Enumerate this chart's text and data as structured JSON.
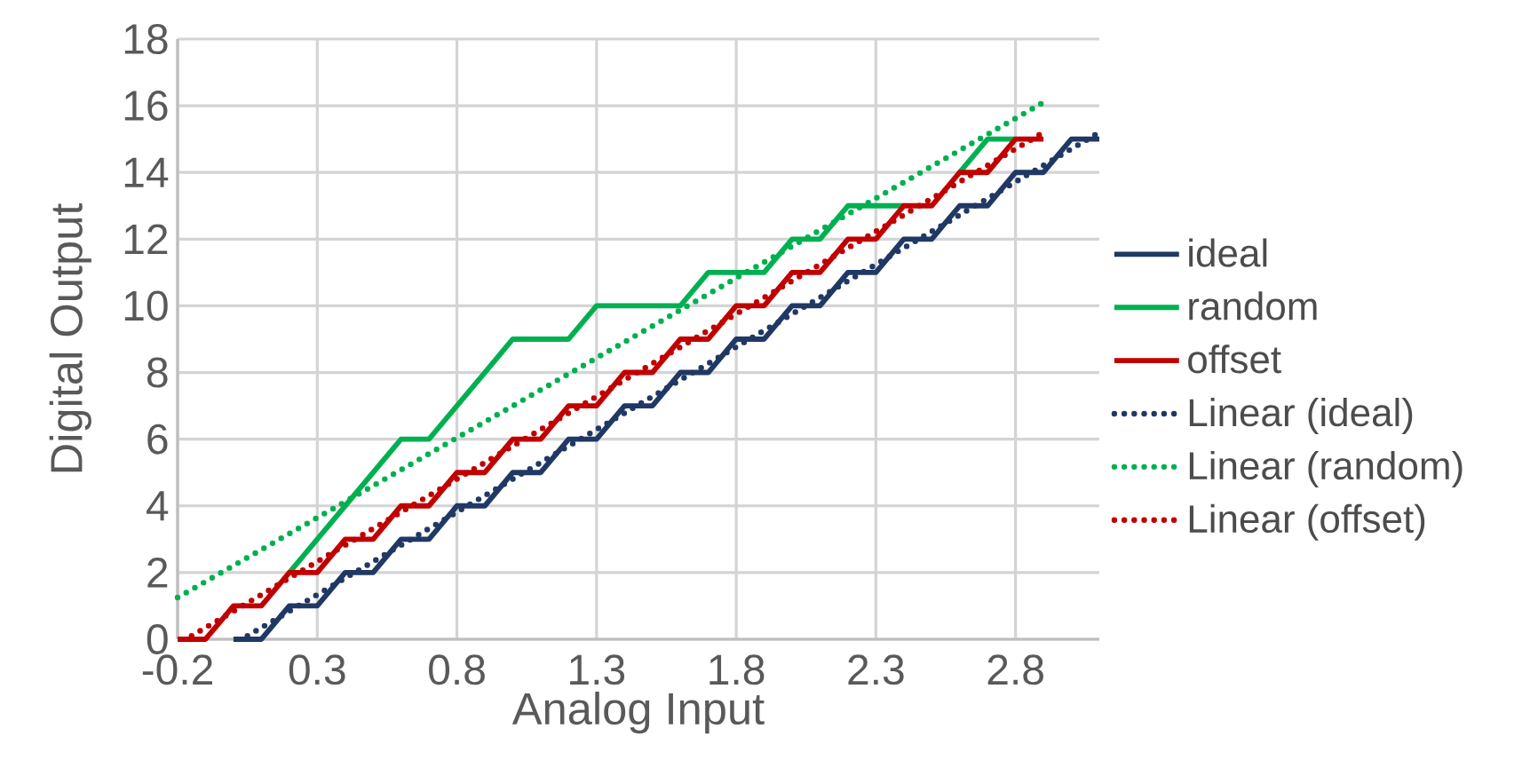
{
  "chart_data": {
    "type": "line",
    "xlabel": "Analog Input",
    "ylabel": "Digital Output",
    "xlim": [
      -0.2,
      3.1
    ],
    "ylim": [
      0,
      18
    ],
    "xticks": [
      -0.2,
      0.3,
      0.8,
      1.3,
      1.8,
      2.3,
      2.8
    ],
    "yticks": [
      0,
      2,
      4,
      6,
      8,
      10,
      12,
      14,
      16,
      18
    ],
    "grid": true,
    "legend": "right",
    "series": [
      {
        "name": "ideal",
        "color": "#203864",
        "line_style": "solid",
        "x": [
          0,
          0.1,
          0.2,
          0.3,
          0.4,
          0.5,
          0.6,
          0.7,
          0.8,
          0.9,
          1.0,
          1.1,
          1.2,
          1.3,
          1.4,
          1.5,
          1.6,
          1.7,
          1.8,
          1.9,
          2.0,
          2.1,
          2.2,
          2.3,
          2.4,
          2.5,
          2.6,
          2.7,
          2.8,
          2.9,
          3.0,
          3.1
        ],
        "values": [
          0,
          0,
          1,
          1,
          2,
          2,
          3,
          3,
          4,
          4,
          5,
          5,
          6,
          6,
          7,
          7,
          8,
          8,
          9,
          9,
          10,
          10,
          11,
          11,
          12,
          12,
          13,
          13,
          14,
          14,
          15,
          15
        ]
      },
      {
        "name": "random",
        "color": "#00b050",
        "line_style": "solid",
        "x": [
          0.2,
          0.3,
          0.4,
          0.5,
          0.6,
          0.7,
          0.8,
          0.9,
          1.0,
          1.1,
          1.2,
          1.3,
          1.4,
          1.5,
          1.6,
          1.7,
          1.8,
          1.9,
          2.0,
          2.1,
          2.2,
          2.3,
          2.4,
          2.5,
          2.6,
          2.7,
          2.8
        ],
        "values": [
          2,
          3,
          4,
          5,
          6,
          6,
          7,
          8,
          9,
          9,
          9,
          10,
          10,
          10,
          10,
          11,
          11,
          11,
          12,
          12,
          13,
          13,
          13,
          null,
          14,
          15,
          15
        ]
      },
      {
        "name": "offset",
        "color": "#c00000",
        "line_style": "solid",
        "x": [
          -0.2,
          -0.1,
          0,
          0.1,
          0.2,
          0.3,
          0.4,
          0.5,
          0.6,
          0.7,
          0.8,
          0.9,
          1.0,
          1.1,
          1.2,
          1.3,
          1.4,
          1.5,
          1.6,
          1.7,
          1.8,
          1.9,
          2.0,
          2.1,
          2.2,
          2.3,
          2.4,
          2.5,
          2.6,
          2.7,
          2.8,
          2.9
        ],
        "values": [
          0,
          0,
          1,
          1,
          2,
          2,
          3,
          3,
          4,
          4,
          5,
          5,
          6,
          6,
          7,
          7,
          8,
          8,
          9,
          9,
          10,
          10,
          11,
          11,
          12,
          12,
          13,
          13,
          14,
          14,
          15,
          15
        ]
      },
      {
        "name": "Linear (ideal)",
        "color": "#203864",
        "line_style": "dotted",
        "x": [
          0.05,
          3.1
        ],
        "values": [
          0.1,
          15.2
        ]
      },
      {
        "name": "Linear (random)",
        "color": "#00b050",
        "line_style": "dotted",
        "x": [
          -0.2,
          2.9
        ],
        "values": [
          1.25,
          16.1
        ]
      },
      {
        "name": "Linear (offset)",
        "color": "#c00000",
        "line_style": "dotted",
        "x": [
          -0.15,
          2.9
        ],
        "values": [
          0.1,
          15.2
        ]
      }
    ]
  }
}
